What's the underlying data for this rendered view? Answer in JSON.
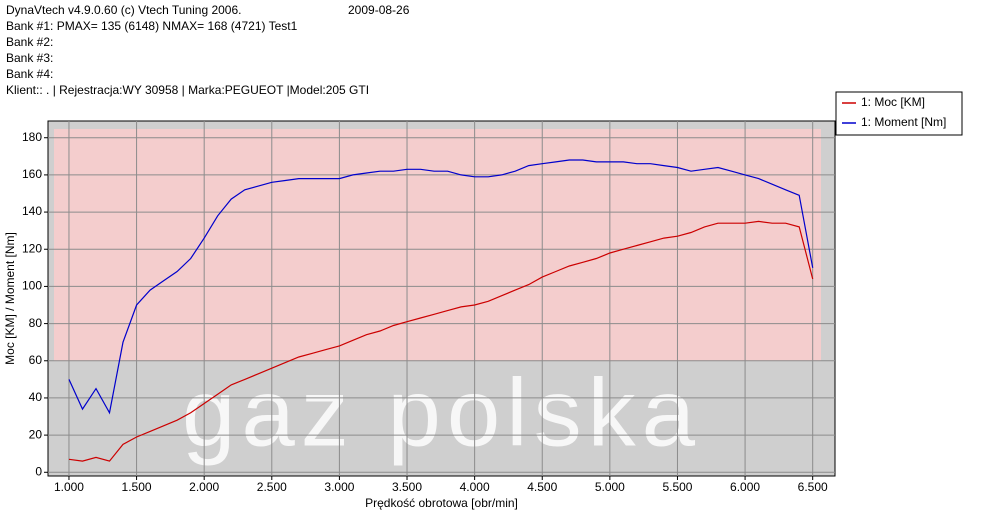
{
  "header": {
    "title": "DynaVtech v4.9.0.60 (c) Vtech Tuning 2006.",
    "date": "2009-08-26",
    "lines": [
      "Bank #1:  PMAX= 135 (6148)     NMAX= 168 (4721)    Test1",
      "Bank #2:",
      "Bank #3:",
      "Bank #4:",
      "Klient:: . | Rejestracja:WY 30958 | Marka:PEGUEOT |Model:205  GTI"
    ]
  },
  "chart_data": {
    "type": "line",
    "x_label": "Prędkość obrotowa [obr/min]",
    "y_label": "Moc [KM] / Moment [Nm]",
    "watermark": "gaz polska",
    "x": [
      1000,
      1100,
      1200,
      1300,
      1400,
      1500,
      1600,
      1700,
      1800,
      1900,
      2000,
      2100,
      2200,
      2300,
      2400,
      2500,
      2600,
      2700,
      2800,
      2900,
      3000,
      3100,
      3200,
      3300,
      3400,
      3500,
      3600,
      3700,
      3800,
      3900,
      4000,
      4100,
      4200,
      4300,
      4400,
      4500,
      4600,
      4700,
      4800,
      4900,
      5000,
      5100,
      5200,
      5300,
      5400,
      5500,
      5600,
      5700,
      5800,
      5900,
      6000,
      6100,
      6200,
      6300,
      6400,
      6500
    ],
    "series": [
      {
        "name": "1: Moc [KM]",
        "color": "#cc0000",
        "values": [
          7,
          6,
          8,
          6,
          15,
          19,
          22,
          25,
          28,
          32,
          37,
          42,
          47,
          50,
          53,
          56,
          59,
          62,
          64,
          66,
          68,
          71,
          74,
          76,
          79,
          81,
          83,
          85,
          87,
          89,
          90,
          92,
          95,
          98,
          101,
          105,
          108,
          111,
          113,
          115,
          118,
          120,
          122,
          124,
          126,
          127,
          129,
          132,
          134,
          134,
          134,
          135,
          134,
          134,
          132,
          104
        ]
      },
      {
        "name": "1: Moment [Nm]",
        "color": "#0000cc",
        "values": [
          50,
          34,
          45,
          32,
          70,
          90,
          98,
          103,
          108,
          115,
          126,
          138,
          147,
          152,
          154,
          156,
          157,
          158,
          158,
          158,
          158,
          160,
          161,
          162,
          162,
          163,
          163,
          162,
          162,
          160,
          159,
          159,
          160,
          162,
          165,
          166,
          167,
          168,
          168,
          167,
          167,
          167,
          166,
          166,
          165,
          164,
          162,
          163,
          164,
          162,
          160,
          158,
          155,
          152,
          149,
          110
        ]
      }
    ],
    "xlim": [
      845,
      6665
    ],
    "ylim": [
      -2,
      189
    ],
    "xticks": [
      {
        "value": 1000,
        "label": "1.000"
      },
      {
        "value": 1500,
        "label": "1.500"
      },
      {
        "value": 2000,
        "label": "2.000"
      },
      {
        "value": 2500,
        "label": "2.500"
      },
      {
        "value": 3000,
        "label": "3.000"
      },
      {
        "value": 3500,
        "label": "3.500"
      },
      {
        "value": 4000,
        "label": "4.000"
      },
      {
        "value": 4500,
        "label": "4.500"
      },
      {
        "value": 5000,
        "label": "5.000"
      },
      {
        "value": 5500,
        "label": "5.500"
      },
      {
        "value": 6000,
        "label": "6.000"
      },
      {
        "value": 6500,
        "label": "6.500"
      }
    ],
    "yticks": [
      0,
      20,
      40,
      60,
      80,
      100,
      120,
      140,
      160,
      180
    ],
    "grid": true,
    "legend": "top-right"
  }
}
